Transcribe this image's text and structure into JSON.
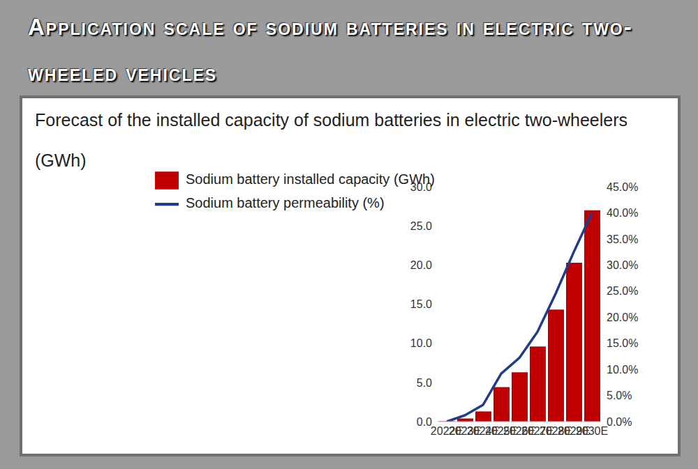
{
  "chart_data": {
    "type": "bar",
    "title": "Application scale of sodium batteries in electric two-wheeled vehicles",
    "subtitle": "Forecast of the installed capacity of sodium batteries in electric two-wheelers (GWh)",
    "categories": [
      "2022E",
      "2023E",
      "2024E",
      "2025E",
      "2026E",
      "2027E",
      "2028E",
      "2029E",
      "2030E"
    ],
    "series": [
      {
        "name": "Sodium battery installed capacity (GWh)",
        "type": "bar",
        "color": "#c00000",
        "values": [
          0.05,
          0.4,
          1.3,
          4.4,
          6.3,
          9.6,
          14.3,
          20.3,
          27.0
        ]
      },
      {
        "name": "Sodium battery permeability (%)",
        "type": "line",
        "axis": "y2",
        "color": "#1f3c88",
        "values": [
          0.0,
          1.2,
          3.2,
          9.2,
          12.2,
          17.2,
          24.5,
          32.5,
          40.0
        ]
      }
    ],
    "ylim": [
      0,
      30
    ],
    "yticks": [
      {
        "value": 0,
        "label": "0.0"
      },
      {
        "value": 5,
        "label": "5.0"
      },
      {
        "value": 10,
        "label": "10.0"
      },
      {
        "value": 15,
        "label": "15.0"
      },
      {
        "value": 20,
        "label": "20.0"
      },
      {
        "value": 25,
        "label": "25.0"
      },
      {
        "value": 30,
        "label": "30.0"
      }
    ],
    "y2lim": [
      0,
      45
    ],
    "y2ticks": [
      {
        "value": 0,
        "label": "0.0%"
      },
      {
        "value": 5,
        "label": "5.0%"
      },
      {
        "value": 10,
        "label": "10.0%"
      },
      {
        "value": 15,
        "label": "15.0%"
      },
      {
        "value": 20,
        "label": "20.0%"
      },
      {
        "value": 25,
        "label": "25.0%"
      },
      {
        "value": 30,
        "label": "30.0%"
      },
      {
        "value": 35,
        "label": "35.0%"
      },
      {
        "value": 40,
        "label": "40.0%"
      },
      {
        "value": 45,
        "label": "45.0%"
      }
    ],
    "grid": false,
    "legend": "top"
  }
}
